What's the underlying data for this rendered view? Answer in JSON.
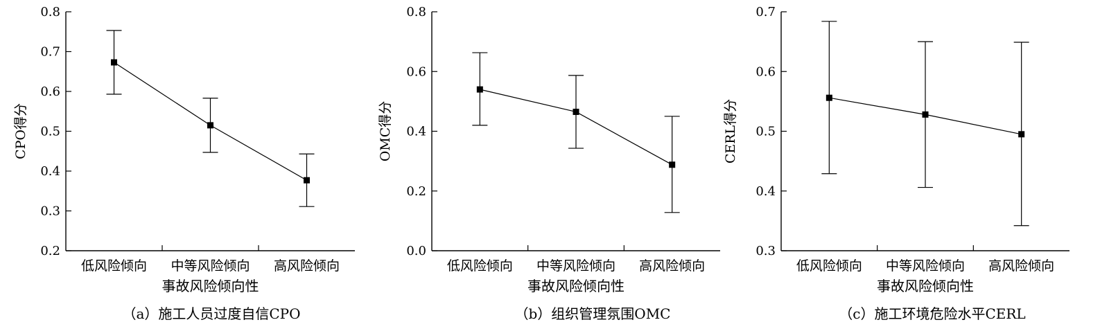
{
  "chart_data": [
    {
      "type": "line",
      "panel": "a",
      "caption": "（a）施工人员过度自信CPO",
      "xlabel": "事故风险倾向性",
      "ylabel": "CPO得分",
      "categories": [
        "低风险倾向",
        "中等风险倾向",
        "高风险倾向"
      ],
      "ylim": [
        0.2,
        0.8
      ],
      "yticks": [
        0.2,
        0.3,
        0.4,
        0.5,
        0.6,
        0.7,
        0.8
      ],
      "tick_decimals": 1,
      "series": [
        {
          "values": [
            0.673,
            0.515,
            0.377
          ],
          "err_low": [
            0.593,
            0.447,
            0.311
          ],
          "err_high": [
            0.753,
            0.583,
            0.443
          ]
        }
      ]
    },
    {
      "type": "line",
      "panel": "b",
      "caption": "（b）组织管理氛围OMC",
      "xlabel": "事故风险倾向性",
      "ylabel": "OMC得分",
      "categories": [
        "低风险倾向",
        "中等风险倾向",
        "高风险倾向"
      ],
      "ylim": [
        0.0,
        0.8
      ],
      "yticks": [
        0.0,
        0.2,
        0.4,
        0.6,
        0.8
      ],
      "tick_decimals": 1,
      "series": [
        {
          "values": [
            0.54,
            0.465,
            0.288
          ],
          "err_low": [
            0.42,
            0.343,
            0.128
          ],
          "err_high": [
            0.663,
            0.587,
            0.45
          ]
        }
      ]
    },
    {
      "type": "line",
      "panel": "c",
      "caption": "（c）施工环境危险水平CERL",
      "xlabel": "事故风险倾向性",
      "ylabel": "CERL得分",
      "categories": [
        "低风险倾向",
        "中等风险倾向",
        "高风险倾向"
      ],
      "ylim": [
        0.3,
        0.7
      ],
      "yticks": [
        0.3,
        0.4,
        0.5,
        0.6,
        0.7
      ],
      "tick_decimals": 1,
      "series": [
        {
          "values": [
            0.556,
            0.528,
            0.495
          ],
          "err_low": [
            0.429,
            0.406,
            0.342
          ],
          "err_high": [
            0.684,
            0.65,
            0.649
          ]
        }
      ]
    }
  ]
}
